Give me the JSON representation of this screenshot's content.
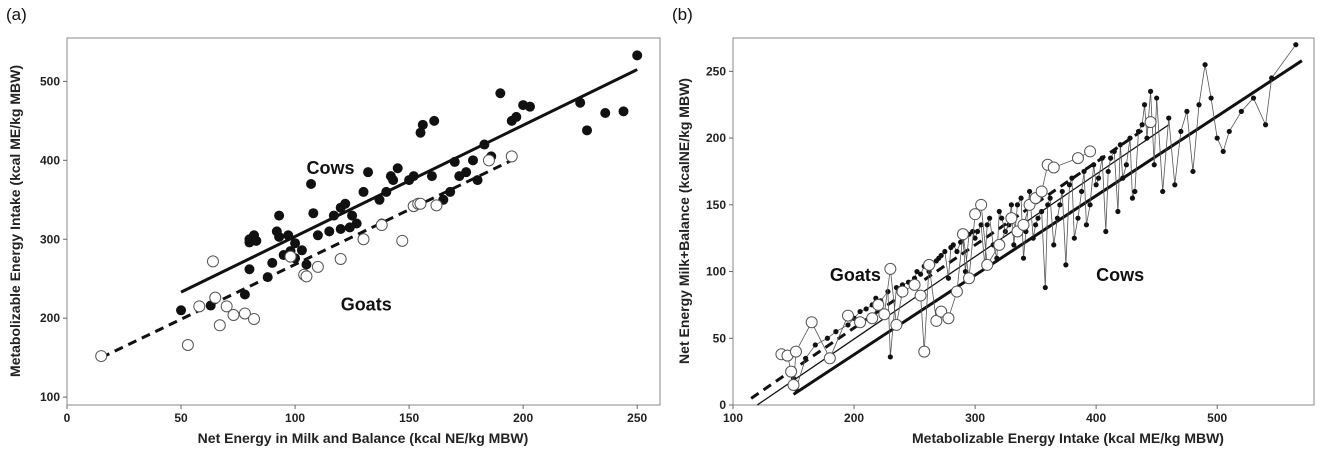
{
  "chart_data": [
    {
      "type": "scatter",
      "panel_label": "(a)",
      "xlabel": "Net Energy in Milk and Balance (kcal NE/kg MBW)",
      "ylabel": "Metabolizable Energy Intake (kcal ME/kg MBW)",
      "xlim": [
        0,
        260
      ],
      "ylim": [
        90,
        555
      ],
      "xticks": [
        0,
        50,
        100,
        150,
        200,
        250
      ],
      "yticks": [
        100,
        200,
        300,
        400,
        500
      ],
      "grid": false,
      "annotations": [
        {
          "text": "Cows",
          "x": 105,
          "y": 383
        },
        {
          "text": "Goats",
          "x": 120,
          "y": 210
        }
      ],
      "series": [
        {
          "marker": "filled-circle",
          "x": [
            50,
            63,
            78,
            80,
            80,
            80,
            82,
            83,
            88,
            90,
            92,
            93,
            93,
            95,
            97,
            98,
            100,
            100,
            103,
            105,
            107,
            108,
            110,
            115,
            117,
            120,
            120,
            122,
            124,
            125,
            127,
            130,
            132,
            137,
            138,
            140,
            142,
            143,
            145,
            150,
            152,
            155,
            156,
            160,
            161,
            165,
            168,
            170,
            172,
            175,
            178,
            180,
            183,
            186,
            190,
            195,
            197,
            200,
            203,
            225,
            228,
            236,
            244,
            250
          ],
          "y": [
            210,
            216,
            230,
            262,
            296,
            300,
            305,
            298,
            252,
            270,
            310,
            330,
            303,
            280,
            305,
            285,
            295,
            276,
            286,
            268,
            370,
            333,
            305,
            310,
            330,
            340,
            313,
            345,
            315,
            330,
            320,
            360,
            385,
            350,
            320,
            360,
            380,
            375,
            390,
            375,
            380,
            435,
            445,
            380,
            450,
            350,
            360,
            398,
            380,
            385,
            400,
            375,
            420,
            405,
            485,
            450,
            455,
            470,
            468,
            473,
            438,
            460,
            462,
            533
          ]
        },
        {
          "marker": "open-circle",
          "x": [
            15,
            53,
            58,
            64,
            65,
            67,
            70,
            73,
            78,
            82,
            98,
            104,
            105,
            110,
            120,
            130,
            138,
            147,
            152,
            154,
            155,
            162,
            185,
            195
          ],
          "y": [
            152,
            166,
            215,
            272,
            226,
            191,
            215,
            204,
            206,
            199,
            278,
            255,
            253,
            265,
            275,
            300,
            318,
            298,
            342,
            345,
            345,
            343,
            400,
            405
          ]
        }
      ],
      "fit_lines": [
        {
          "x": [
            50,
            250
          ],
          "y": [
            233,
            515
          ],
          "style": "solid"
        },
        {
          "x": [
            15,
            195
          ],
          "y": [
            150,
            400
          ],
          "style": "dashed"
        }
      ]
    },
    {
      "type": "scatter",
      "panel_label": "(b)",
      "xlabel": "Metabolizable Energy Intake (kcal ME/kg MBW)",
      "ylabel": "Net Energy Milk+Balance  (kcalNE/kg MBW)",
      "xlim": [
        100,
        580
      ],
      "ylim": [
        0,
        275
      ],
      "xticks": [
        100,
        200,
        300,
        400,
        500
      ],
      "yticks": [
        0,
        50,
        100,
        150,
        200,
        250
      ],
      "grid": false,
      "annotations": [
        {
          "text": "Goats",
          "x": 180,
          "y": 93
        },
        {
          "text": "Cows",
          "x": 400,
          "y": 93
        }
      ],
      "series": [
        {
          "marker": "small-filled-dot",
          "x": [
            150,
            152,
            160,
            168,
            178,
            185,
            195,
            200,
            205,
            210,
            215,
            218,
            222,
            228,
            230,
            235,
            240,
            245,
            250,
            252,
            255,
            258,
            262,
            265,
            268,
            270,
            272,
            275,
            278,
            280,
            282,
            285,
            288,
            290,
            292,
            295,
            298,
            300,
            302,
            305,
            308,
            310,
            312,
            315,
            318,
            320,
            322,
            325,
            328,
            330,
            332,
            335,
            338,
            340,
            342,
            345,
            348,
            350,
            352,
            355,
            358,
            360,
            362,
            365,
            368,
            370,
            372,
            375,
            378,
            380,
            382,
            385,
            388,
            390,
            392,
            395,
            398,
            400,
            402,
            405,
            408,
            410,
            412,
            415,
            418,
            420,
            422,
            425,
            428,
            430,
            432,
            435,
            438,
            440,
            442,
            445,
            448,
            450,
            455,
            460,
            465,
            470,
            475,
            480,
            485,
            490,
            495,
            500,
            505,
            510,
            520,
            530,
            540,
            545,
            565
          ],
          "y": [
            20,
            12,
            35,
            45,
            50,
            55,
            60,
            65,
            70,
            72,
            75,
            80,
            78,
            85,
            36,
            88,
            90,
            92,
            95,
            100,
            98,
            104,
            100,
            105,
            108,
            110,
            112,
            115,
            95,
            118,
            120,
            115,
            122,
            125,
            100,
            128,
            130,
            125,
            130,
            135,
            105,
            135,
            140,
            120,
            110,
            145,
            140,
            130,
            135,
            150,
            120,
            150,
            155,
            110,
            130,
            160,
            125,
            135,
            140,
            145,
            88,
            150,
            155,
            120,
            140,
            150,
            160,
            105,
            165,
            170,
            125,
            140,
            160,
            175,
            135,
            150,
            180,
            165,
            170,
            185,
            130,
            175,
            185,
            190,
            145,
            195,
            170,
            180,
            200,
            155,
            160,
            205,
            210,
            225,
            200,
            235,
            180,
            230,
            160,
            215,
            165,
            205,
            220,
            175,
            225,
            255,
            230,
            200,
            190,
            205,
            220,
            230,
            210,
            245,
            270
          ]
        },
        {
          "marker": "open-circle",
          "x": [
            140,
            145,
            148,
            150,
            152,
            165,
            180,
            195,
            205,
            215,
            220,
            225,
            230,
            235,
            240,
            250,
            255,
            258,
            262,
            268,
            272,
            278,
            285,
            290,
            295,
            300,
            305,
            310,
            320,
            330,
            335,
            340,
            345,
            350,
            355,
            360,
            365,
            385,
            395,
            445
          ],
          "y": [
            38,
            37,
            25,
            15,
            40,
            62,
            35,
            67,
            62,
            65,
            75,
            68,
            102,
            60,
            85,
            90,
            82,
            40,
            105,
            63,
            70,
            65,
            85,
            128,
            95,
            143,
            150,
            105,
            120,
            140,
            130,
            135,
            150,
            155,
            160,
            180,
            178,
            185,
            190,
            212
          ]
        }
      ],
      "fit_lines": [
        {
          "x": [
            150,
            570
          ],
          "y": [
            8,
            258
          ],
          "style": "solid"
        },
        {
          "x": [
            115,
            450
          ],
          "y": [
            5,
            213
          ],
          "style": "dashed"
        },
        {
          "x": [
            120,
            460
          ],
          "y": [
            0,
            210
          ],
          "style": "thin"
        }
      ]
    }
  ]
}
